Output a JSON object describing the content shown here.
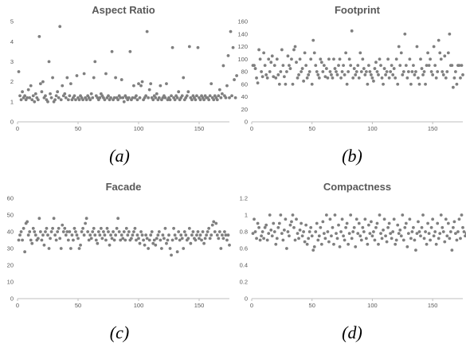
{
  "captions": [
    "(a)",
    "(b)",
    "(c)",
    "(d)"
  ],
  "colors": {
    "marker": "#7f7f7f",
    "axis": "#bfbfbf",
    "text": "#595959"
  },
  "chart_data": [
    {
      "type": "scatter",
      "title": "Aspect Ratio",
      "xlim": [
        0,
        175
      ],
      "ylim": [
        0,
        5
      ],
      "x_ticks": [
        0,
        50,
        100,
        150
      ],
      "y_ticks": [
        0,
        1,
        2,
        3,
        4,
        5
      ],
      "grid": false,
      "series": [
        {
          "values": [
            2.5,
            1.3,
            1.1,
            1.5,
            1.2,
            1.3,
            1.1,
            1.2,
            1.6,
            1.2,
            1.8,
            1.1,
            1.3,
            1.0,
            1.4,
            1.2,
            1.1,
            4.25,
            1.9,
            1.5,
            2.0,
            1.2,
            1.3,
            1.1,
            1.0,
            3.0,
            1.4,
            1.2,
            2.2,
            1.0,
            1.1,
            1.3,
            1.5,
            1.2,
            4.75,
            1.1,
            1.8,
            1.3,
            1.4,
            1.2,
            2.2,
            1.1,
            1.3,
            1.9,
            1.1,
            1.2,
            1.3,
            1.1,
            2.3,
            1.2,
            1.1,
            1.3,
            1.2,
            1.1,
            2.4,
            1.2,
            1.1,
            1.3,
            1.2,
            1.1,
            1.4,
            1.2,
            2.2,
            3.0,
            1.3,
            1.2,
            1.1,
            1.2,
            1.4,
            1.3,
            1.2,
            1.1,
            2.4,
            1.2,
            1.3,
            1.1,
            1.2,
            3.5,
            1.1,
            1.2,
            2.2,
            1.2,
            1.1,
            1.3,
            1.2,
            2.1,
            1.2,
            1.0,
            1.3,
            1.2,
            1.1,
            1.2,
            3.5,
            1.1,
            1.2,
            1.8,
            1.2,
            1.3,
            1.1,
            1.9,
            1.2,
            1.8,
            2.0,
            1.1,
            1.2,
            1.3,
            4.5,
            1.2,
            1.6,
            1.9,
            1.2,
            1.1,
            1.3,
            1.2,
            1.4,
            1.1,
            1.2,
            1.8,
            1.1,
            1.2,
            1.3,
            1.2,
            1.9,
            1.1,
            1.2,
            1.1,
            1.3,
            3.7,
            1.2,
            1.1,
            1.3,
            1.2,
            1.5,
            1.1,
            1.2,
            1.3,
            2.2,
            1.1,
            1.2,
            1.3,
            1.5,
            3.75,
            1.2,
            1.1,
            1.3,
            1.2,
            1.1,
            1.3,
            3.7,
            1.2,
            1.1,
            1.3,
            1.2,
            1.1,
            1.3,
            1.2,
            1.2,
            1.1,
            1.3,
            1.9,
            1.2,
            1.1,
            1.3,
            1.2,
            1.1,
            1.3,
            1.6,
            1.2,
            1.4,
            2.8,
            1.3,
            1.2,
            1.8,
            3.3,
            1.2,
            4.5,
            1.3,
            3.7,
            2.1,
            1.2,
            2.3
          ]
        }
      ]
    },
    {
      "type": "scatter",
      "title": "Footprint",
      "xlim": [
        0,
        175
      ],
      "ylim": [
        0,
        160
      ],
      "x_ticks": [
        0,
        50,
        100,
        150
      ],
      "y_ticks": [
        0,
        20,
        40,
        60,
        80,
        100,
        120,
        140,
        160
      ],
      "grid": false,
      "series": [
        {
          "values": [
            90,
            90,
            85,
            70,
            62,
            115,
            100,
            80,
            72,
            110,
            90,
            75,
            70,
            100,
            80,
            95,
            105,
            72,
            90,
            70,
            100,
            75,
            60,
            80,
            115,
            90,
            72,
            60,
            80,
            105,
            90,
            85,
            100,
            60,
            115,
            120,
            95,
            70,
            75,
            100,
            80,
            85,
            65,
            110,
            90,
            70,
            75,
            80,
            100,
            60,
            130,
            110,
            90,
            80,
            75,
            70,
            100,
            95,
            80,
            90,
            72,
            85,
            70,
            100,
            80,
            75,
            70,
            100,
            85,
            80,
            75,
            90,
            100,
            70,
            80,
            90,
            75,
            110,
            60,
            80,
            100,
            90,
            145,
            70,
            85,
            75,
            80,
            90,
            70,
            110,
            80,
            100,
            85,
            75,
            80,
            60,
            90,
            80,
            75,
            70,
            65,
            85,
            95,
            80,
            75,
            100,
            90,
            70,
            60,
            85,
            75,
            80,
            100,
            70,
            80,
            90,
            75,
            85,
            70,
            100,
            60,
            120,
            90,
            110,
            75,
            80,
            140,
            90,
            70,
            80,
            100,
            60,
            80,
            90,
            75,
            80,
            120,
            70,
            60,
            100,
            85,
            75,
            80,
            60,
            90,
            110,
            90,
            100,
            80,
            75,
            120,
            90,
            70,
            80,
            130,
            110,
            100,
            80,
            75,
            105,
            70,
            80,
            110,
            140,
            90,
            90,
            55,
            70,
            80,
            60,
            90,
            90,
            70,
            90,
            75
          ]
        }
      ]
    },
    {
      "type": "scatter",
      "title": "Facade",
      "xlim": [
        0,
        175
      ],
      "ylim": [
        0,
        60
      ],
      "x_ticks": [
        0,
        50,
        100,
        150
      ],
      "y_ticks": [
        0,
        10,
        20,
        30,
        40,
        50,
        60
      ],
      "grid": false,
      "series": [
        {
          "values": [
            35,
            38,
            40,
            35,
            42,
            28,
            45,
            46,
            38,
            40,
            35,
            33,
            42,
            40,
            38,
            35,
            36,
            48,
            40,
            35,
            38,
            32,
            40,
            42,
            38,
            30,
            36,
            40,
            42,
            48,
            38,
            35,
            40,
            42,
            36,
            30,
            44,
            40,
            42,
            38,
            40,
            35,
            40,
            30,
            38,
            35,
            42,
            40,
            38,
            36,
            30,
            32,
            40,
            42,
            38,
            45,
            48,
            40,
            35,
            38,
            36,
            40,
            42,
            38,
            35,
            33,
            40,
            38,
            42,
            36,
            40,
            38,
            35,
            42,
            40,
            32,
            38,
            36,
            40,
            35,
            38,
            42,
            48,
            40,
            35,
            38,
            36,
            40,
            35,
            42,
            38,
            40,
            35,
            36,
            38,
            40,
            42,
            35,
            38,
            36,
            33,
            40,
            38,
            35,
            32,
            38,
            36,
            30,
            35,
            38,
            40,
            33,
            35,
            32,
            36,
            38,
            40,
            35,
            30,
            38,
            36,
            42,
            33,
            35,
            38,
            30,
            26,
            35,
            42,
            38,
            36,
            28,
            40,
            35,
            38,
            36,
            30,
            40,
            38,
            35,
            36,
            42,
            33,
            38,
            40,
            36,
            35,
            38,
            40,
            36,
            38,
            35,
            40,
            33,
            36,
            38,
            40,
            42,
            36,
            38,
            44,
            46,
            40,
            45,
            38,
            36,
            40,
            30,
            38,
            36,
            40,
            38,
            35,
            38,
            32
          ]
        }
      ]
    },
    {
      "type": "scatter",
      "title": "Compactness",
      "xlim": [
        0,
        175
      ],
      "ylim": [
        0,
        1.2
      ],
      "x_ticks": [
        0,
        50,
        100,
        150
      ],
      "y_ticks": [
        0,
        0.2,
        0.4,
        0.6,
        0.8,
        1,
        1.2
      ],
      "grid": false,
      "series": [
        {
          "values": [
            0.78,
            0.95,
            0.8,
            0.72,
            0.9,
            0.85,
            0.7,
            0.75,
            0.8,
            0.72,
            0.85,
            0.88,
            0.7,
            0.78,
            1.0,
            0.82,
            0.75,
            0.9,
            0.8,
            0.65,
            0.72,
            0.85,
            0.9,
            1.0,
            0.78,
            0.7,
            0.82,
            0.95,
            0.6,
            0.8,
            0.75,
            0.88,
            0.92,
            1.0,
            0.85,
            0.7,
            0.95,
            0.78,
            0.72,
            0.82,
            0.9,
            0.75,
            0.8,
            0.68,
            0.88,
            0.65,
            0.72,
            0.8,
            0.85,
            0.75,
            0.58,
            0.62,
            0.8,
            0.9,
            0.7,
            0.75,
            0.85,
            0.65,
            0.92,
            0.78,
            0.72,
            1.0,
            0.8,
            0.68,
            0.95,
            0.75,
            0.85,
            0.65,
            1.0,
            0.78,
            0.72,
            0.88,
            0.62,
            0.8,
            0.95,
            0.75,
            0.7,
            0.85,
            0.9,
            0.65,
            0.78,
            1.0,
            0.72,
            0.8,
            0.85,
            0.62,
            0.95,
            0.78,
            0.9,
            0.75,
            0.7,
            0.85,
            0.8,
            0.95,
            0.72,
            0.65,
            0.88,
            0.78,
            0.92,
            0.75,
            0.8,
            0.7,
            0.85,
            0.9,
            0.65,
            1.0,
            0.78,
            0.72,
            0.82,
            0.95,
            0.75,
            0.68,
            0.85,
            0.9,
            0.78,
            0.72,
            0.8,
            0.95,
            0.65,
            0.7,
            0.88,
            0.78,
            0.82,
            0.75,
            1.0,
            0.7,
            0.85,
            0.9,
            0.62,
            0.78,
            0.95,
            0.72,
            0.8,
            0.85,
            0.7,
            0.58,
            0.78,
            0.92,
            0.8,
            0.75,
            0.85,
            1.0,
            0.72,
            0.8,
            0.65,
            0.9,
            0.78,
            0.7,
            0.85,
            0.95,
            0.75,
            0.8,
            0.65,
            0.9,
            0.72,
            0.78,
            1.0,
            0.85,
            0.8,
            0.68,
            0.95,
            0.75,
            0.9,
            0.72,
            0.8,
            0.58,
            0.85,
            0.92,
            0.78,
            0.7,
            0.8,
            0.95,
            0.72,
            1.0,
            0.85,
            0.8,
            0.75,
            0.78,
            0.8
          ]
        }
      ]
    }
  ]
}
